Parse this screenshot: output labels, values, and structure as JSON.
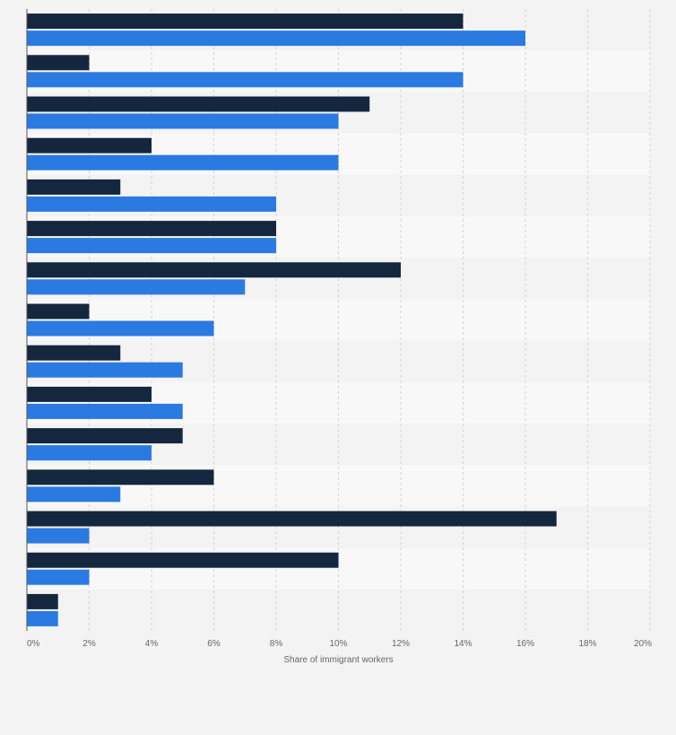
{
  "chart_data": {
    "type": "bar",
    "orientation": "horizontal",
    "xlabel": "Share of immigrant workers",
    "ylabel": "",
    "xlim": [
      0,
      20
    ],
    "x_ticks": [
      "0%",
      "2%",
      "4%",
      "6%",
      "8%",
      "10%",
      "12%",
      "14%",
      "16%",
      "18%",
      "20%"
    ],
    "grid": true,
    "categories": [
      "",
      "",
      "",
      "",
      "",
      "",
      "",
      "",
      "",
      "",
      "",
      "",
      "",
      "",
      ""
    ],
    "series": [
      {
        "color": "#14273f",
        "values": [
          14,
          2,
          11,
          4,
          3,
          8,
          12,
          2,
          3,
          4,
          5,
          6,
          17,
          10,
          1
        ]
      },
      {
        "color": "#2a7ae2",
        "values": [
          16,
          14,
          10,
          10,
          8,
          8,
          7,
          6,
          5,
          5,
          4,
          3,
          2,
          2,
          1
        ]
      }
    ]
  }
}
